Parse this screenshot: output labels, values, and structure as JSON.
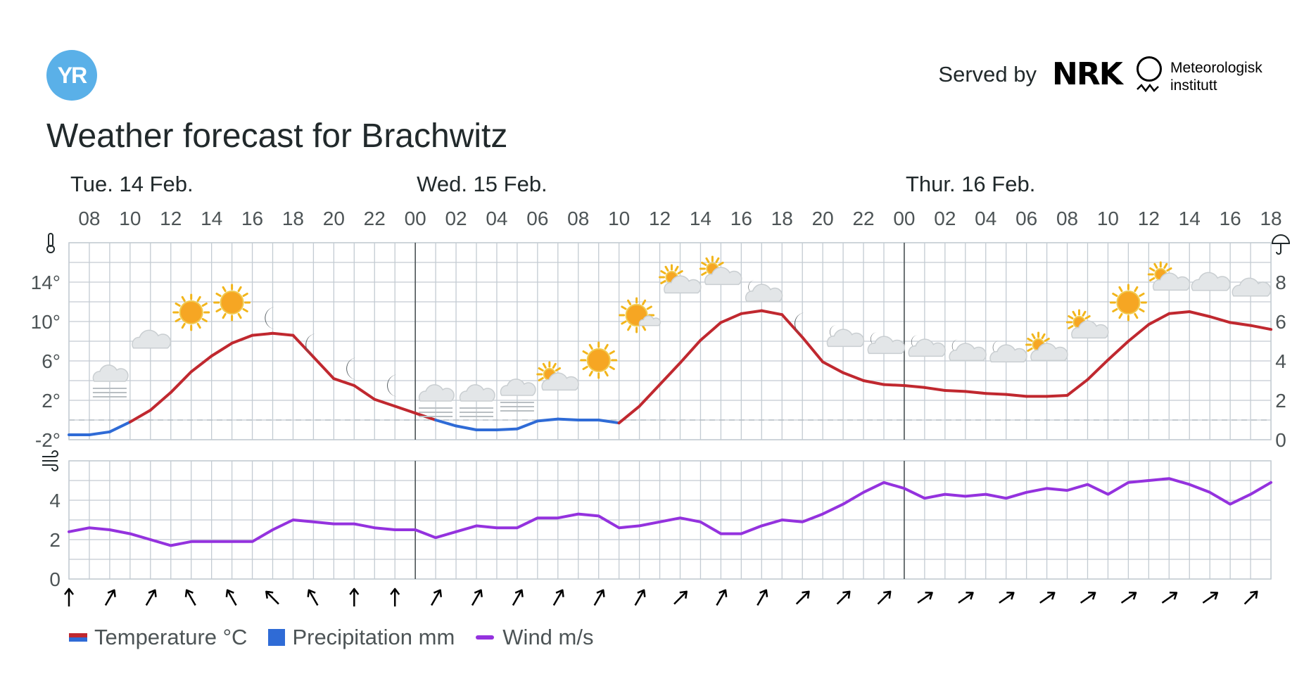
{
  "header": {
    "logo_text": "YR",
    "served_by": "Served by",
    "nrk_text": "NRK",
    "met_line1": "Meteorologisk",
    "met_line2": "institutt"
  },
  "title": "Weather forecast for Brachwitz",
  "legend": {
    "temperature": "Temperature °C",
    "precipitation": "Precipitation mm",
    "wind": "Wind m/s"
  },
  "colors": {
    "temp_warm": "#c0282f",
    "temp_cold": "#2f6bd6",
    "wind": "#9432de",
    "grid": "#c3cbd2",
    "day_divider": "#4d5456"
  },
  "chart_data": [
    {
      "type": "line",
      "title": "Temperature",
      "unit": "°C",
      "day_labels": [
        {
          "label": "Tue. 14 Feb.",
          "hour_index": 0
        },
        {
          "label": "Wed. 15 Feb.",
          "hour_index": 17
        },
        {
          "label": "Thur. 16 Feb.",
          "hour_index": 41
        }
      ],
      "day_dividers": [
        17,
        41
      ],
      "x_tick_labels": [
        "08",
        "10",
        "12",
        "14",
        "16",
        "18",
        "20",
        "22",
        "00",
        "02",
        "04",
        "06",
        "08",
        "10",
        "12",
        "14",
        "16",
        "18",
        "20",
        "22",
        "00",
        "02",
        "04",
        "06",
        "08",
        "10",
        "12",
        "14",
        "16",
        "18"
      ],
      "hours_start": "Tue 07:00",
      "hours_count": 60,
      "y_ticks": [
        14,
        10,
        6,
        2,
        -2
      ],
      "y_tick_labels": [
        "14°",
        "10°",
        "6°",
        "2°",
        "-2°"
      ],
      "ylim": [
        -2,
        18
      ],
      "right_axis_label": "Precipitation mm",
      "right_ticks": [
        8,
        6,
        4,
        2,
        0
      ],
      "right_ylim": [
        0,
        10
      ],
      "zero_line": 0,
      "series": [
        {
          "name": "Temperature",
          "values": [
            -1.5,
            -1.5,
            -1.2,
            -0.2,
            1.0,
            2.8,
            4.9,
            6.5,
            7.8,
            8.6,
            8.8,
            8.6,
            6.4,
            4.2,
            3.5,
            2.1,
            1.4,
            0.7,
            0.0,
            -0.6,
            -1.0,
            -1.0,
            -0.9,
            -0.1,
            0.1,
            0.0,
            0.0,
            -0.3,
            1.4,
            3.6,
            5.8,
            8.1,
            9.9,
            10.8,
            11.1,
            10.7,
            8.4,
            5.9,
            4.8,
            4.0,
            3.6,
            3.5,
            3.3,
            3.0,
            2.9,
            2.7,
            2.6,
            2.4,
            2.4,
            2.5,
            4.1,
            6.1,
            8.0,
            9.7,
            10.8,
            11.0,
            10.5,
            9.9,
            9.6,
            9.2
          ]
        }
      ],
      "symbols": [
        {
          "hour": 2,
          "icon": "fog-cloud"
        },
        {
          "hour": 4,
          "icon": "cloud"
        },
        {
          "hour": 6,
          "icon": "sun"
        },
        {
          "hour": 8,
          "icon": "sun"
        },
        {
          "hour": 10,
          "icon": "moon"
        },
        {
          "hour": 12,
          "icon": "moon"
        },
        {
          "hour": 14,
          "icon": "moon"
        },
        {
          "hour": 16,
          "icon": "moon"
        },
        {
          "hour": 18,
          "icon": "fog-cloud"
        },
        {
          "hour": 20,
          "icon": "fog-cloud"
        },
        {
          "hour": 22,
          "icon": "fog-cloud"
        },
        {
          "hour": 24,
          "icon": "partly-cloudy-day"
        },
        {
          "hour": 26,
          "icon": "sun"
        },
        {
          "hour": 28,
          "icon": "fair-day"
        },
        {
          "hour": 30,
          "icon": "partly-cloudy-day"
        },
        {
          "hour": 32,
          "icon": "partly-cloudy-day"
        },
        {
          "hour": 34,
          "icon": "partly-cloudy-night"
        },
        {
          "hour": 36,
          "icon": "moon"
        },
        {
          "hour": 38,
          "icon": "partly-cloudy-night"
        },
        {
          "hour": 40,
          "icon": "partly-cloudy-night"
        },
        {
          "hour": 42,
          "icon": "partly-cloudy-night"
        },
        {
          "hour": 44,
          "icon": "partly-cloudy-night"
        },
        {
          "hour": 46,
          "icon": "partly-cloudy-night"
        },
        {
          "hour": 48,
          "icon": "partly-cloudy-day"
        },
        {
          "hour": 50,
          "icon": "partly-cloudy-day"
        },
        {
          "hour": 52,
          "icon": "sun"
        },
        {
          "hour": 54,
          "icon": "partly-cloudy-day"
        },
        {
          "hour": 56,
          "icon": "cloud"
        },
        {
          "hour": 58,
          "icon": "cloud"
        }
      ]
    },
    {
      "type": "line",
      "title": "Wind",
      "unit": "m/s",
      "y_ticks": [
        4,
        2,
        0
      ],
      "ylim": [
        0,
        6
      ],
      "series": [
        {
          "name": "Wind",
          "values": [
            2.4,
            2.6,
            2.5,
            2.3,
            2.0,
            1.7,
            1.9,
            1.9,
            1.9,
            1.9,
            2.5,
            3.0,
            2.9,
            2.8,
            2.8,
            2.6,
            2.5,
            2.5,
            2.1,
            2.4,
            2.7,
            2.6,
            2.6,
            3.1,
            3.1,
            3.3,
            3.2,
            2.6,
            2.7,
            2.9,
            3.1,
            2.9,
            2.3,
            2.3,
            2.7,
            3.0,
            2.9,
            3.3,
            3.8,
            4.4,
            4.9,
            4.6,
            4.1,
            4.3,
            4.2,
            4.3,
            4.1,
            4.4,
            4.6,
            4.5,
            4.8,
            4.3,
            4.9,
            5.0,
            5.1,
            4.8,
            4.4,
            3.8,
            4.3,
            4.9
          ]
        }
      ],
      "wind_direction_deg": [
        0,
        30,
        30,
        -30,
        -30,
        -45,
        -30,
        0,
        0,
        30,
        30,
        30,
        30,
        30,
        30,
        45,
        30,
        30,
        45,
        45,
        45,
        55,
        55,
        55,
        55,
        55,
        55,
        55,
        55,
        45
      ]
    }
  ]
}
